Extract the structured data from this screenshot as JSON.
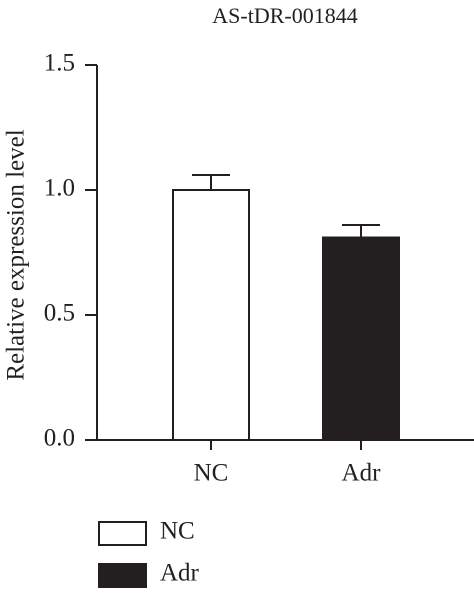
{
  "chart_data": {
    "type": "bar",
    "title": "AS-tDR-001844",
    "y_label": "Relative expression level",
    "categories": [
      "NC",
      "Adr"
    ],
    "values": [
      1.0,
      0.81
    ],
    "errors": [
      0.06,
      0.05
    ],
    "colors": [
      "#ffffff",
      "#231f20"
    ],
    "ylim": [
      0,
      1.5
    ],
    "yticks": [
      {
        "value": 0,
        "label": "0.0"
      },
      0.5,
      {
        "value": 1,
        "label": "1.0"
      },
      1.5
    ],
    "legend": "bottom-left"
  }
}
